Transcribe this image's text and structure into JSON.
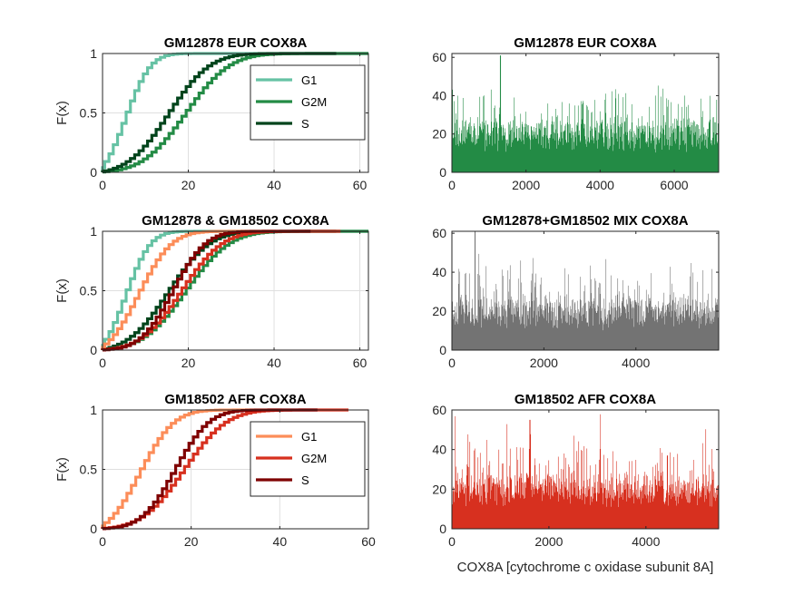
{
  "figure": {
    "xlabel": "COX8A [cytochrome c oxidase subunit 8A]"
  },
  "chart_data": [
    {
      "id": "cdf-eur",
      "type": "line",
      "title": "GM12878 EUR COX8A",
      "ylabel": "F(x)",
      "xlim": [
        0,
        62
      ],
      "ylim": [
        0,
        1
      ],
      "xticks": [
        0,
        20,
        40,
        60
      ],
      "yticks": [
        0,
        0.5,
        1
      ],
      "grid": true,
      "legend": "top-right",
      "series": [
        {
          "name": "G1",
          "color": "#66c2a4",
          "mu": 6,
          "sigma": 4.5,
          "xmax": 62
        },
        {
          "name": "G2M",
          "color": "#238b45",
          "mu": 20,
          "sigma": 8.0,
          "xmax": 62
        },
        {
          "name": "S",
          "color": "#00441b",
          "mu": 16,
          "sigma": 7.5,
          "xmax": 54
        }
      ]
    },
    {
      "id": "hist-eur",
      "type": "bar",
      "title": "GM12878 EUR COX8A",
      "color": "#238b45",
      "xlim": [
        0,
        7200
      ],
      "ylim": [
        0,
        62
      ],
      "xticks": [
        0,
        2000,
        4000,
        6000
      ],
      "yticks": [
        0,
        20,
        40,
        60
      ],
      "n": 7200,
      "seed": 11,
      "peak_index": 1300,
      "peak_value": 61
    },
    {
      "id": "cdf-mix",
      "type": "line",
      "title": "GM12878 & GM18502 COX8A",
      "ylabel": "F(x)",
      "xlim": [
        0,
        62
      ],
      "ylim": [
        0,
        1
      ],
      "xticks": [
        0,
        20,
        40,
        60
      ],
      "yticks": [
        0,
        0.5,
        1
      ],
      "grid": true,
      "series": [
        {
          "name": "G1",
          "color": "#66c2a4",
          "mu": 6,
          "sigma": 4.5,
          "xmax": 62
        },
        {
          "name": "G2M",
          "color": "#238b45",
          "mu": 20,
          "sigma": 8.0,
          "xmax": 62
        },
        {
          "name": "S",
          "color": "#00441b",
          "mu": 16,
          "sigma": 7.5,
          "xmax": 54
        },
        {
          "name": "G1",
          "color": "#fc8d59",
          "mu": 9,
          "sigma": 6.0,
          "xmax": 40
        },
        {
          "name": "G2M",
          "color": "#d7301f",
          "mu": 19,
          "sigma": 7.5,
          "xmax": 55
        },
        {
          "name": "S",
          "color": "#7f0000",
          "mu": 17,
          "sigma": 6.0,
          "xmax": 48
        }
      ]
    },
    {
      "id": "hist-mix",
      "type": "bar",
      "title": "GM12878+GM18502 MIX COX8A",
      "color": "#737373",
      "xlim": [
        0,
        5800
      ],
      "ylim": [
        0,
        61
      ],
      "xticks": [
        0,
        2000,
        4000
      ],
      "yticks": [
        0,
        20,
        40,
        60
      ],
      "n": 5800,
      "seed": 23,
      "peak_index": 500,
      "peak_value": 61
    },
    {
      "id": "cdf-afr",
      "type": "line",
      "title": "GM18502 AFR COX8A",
      "ylabel": "F(x)",
      "xlim": [
        0,
        60
      ],
      "ylim": [
        0,
        1
      ],
      "xticks": [
        0,
        20,
        40,
        60
      ],
      "yticks": [
        0,
        0.5,
        1
      ],
      "grid": true,
      "legend": "top-right",
      "series": [
        {
          "name": "G1",
          "color": "#fc8d59",
          "mu": 9,
          "sigma": 6.0,
          "xmax": 40
        },
        {
          "name": "G2M",
          "color": "#d7301f",
          "mu": 19,
          "sigma": 7.5,
          "xmax": 55
        },
        {
          "name": "S",
          "color": "#7f0000",
          "mu": 17,
          "sigma": 6.0,
          "xmax": 48
        }
      ]
    },
    {
      "id": "hist-afr",
      "type": "bar",
      "title": "GM18502 AFR COX8A",
      "color": "#d7301f",
      "xlim": [
        0,
        5500
      ],
      "ylim": [
        0,
        60
      ],
      "xticks": [
        0,
        2000,
        4000
      ],
      "yticks": [
        0,
        20,
        40,
        60
      ],
      "n": 5500,
      "seed": 37,
      "peak_index": 1600,
      "peak_value": 55
    }
  ]
}
